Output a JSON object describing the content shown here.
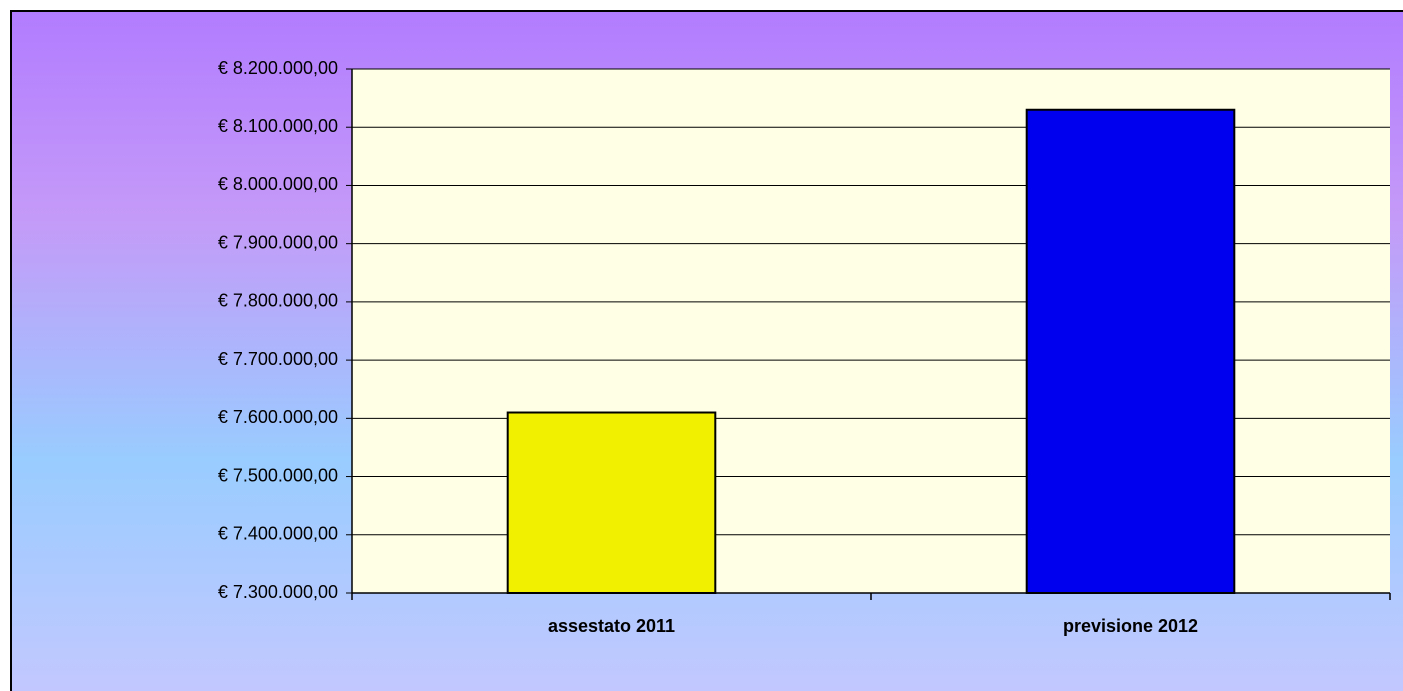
{
  "chart_data": {
    "type": "bar",
    "categories": [
      "assestato 2011",
      "previsione 2012"
    ],
    "values": [
      7610000,
      8130000
    ],
    "colors": [
      "#f0f000",
      "#0000ee"
    ],
    "ylim": [
      7300000,
      8200000
    ],
    "yticks": [
      {
        "value": 7300000,
        "label": "€ 7.300.000,00"
      },
      {
        "value": 7400000,
        "label": "€ 7.400.000,00"
      },
      {
        "value": 7500000,
        "label": "€ 7.500.000,00"
      },
      {
        "value": 7600000,
        "label": "€ 7.600.000,00"
      },
      {
        "value": 7700000,
        "label": "€ 7.700.000,00"
      },
      {
        "value": 7800000,
        "label": "€ 7.800.000,00"
      },
      {
        "value": 7900000,
        "label": "€ 7.900.000,00"
      },
      {
        "value": 8000000,
        "label": "€ 8.000.000,00"
      },
      {
        "value": 8100000,
        "label": "€ 8.100.000,00"
      },
      {
        "value": 8200000,
        "label": "€ 8.200.000,00"
      }
    ],
    "grid": true
  }
}
